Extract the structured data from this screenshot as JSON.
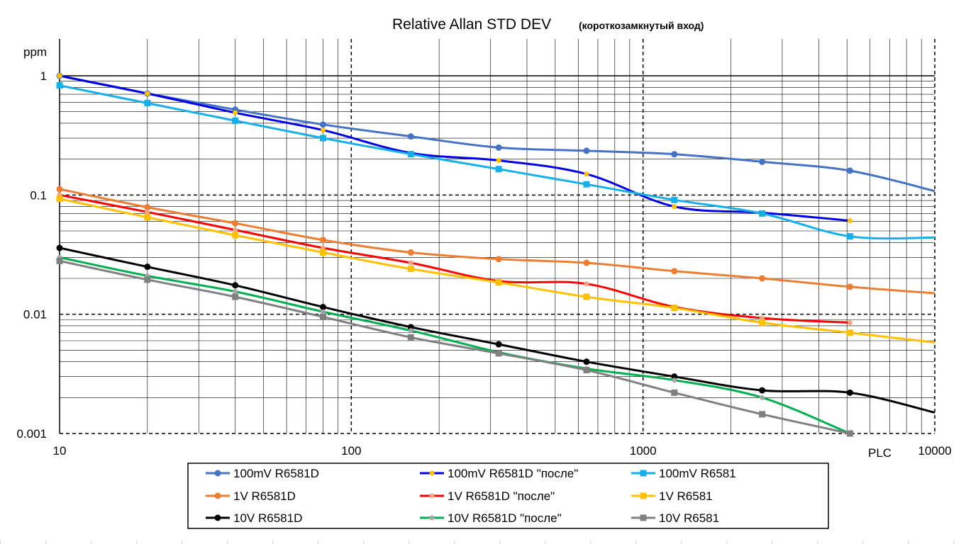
{
  "chart_data": {
    "type": "line",
    "title": "Relative Allan STD DEV",
    "subtitle": "(короткозамкнутый вход)",
    "xlabel": "PLC",
    "ylabel": "ppm",
    "xscale": "log",
    "yscale": "log",
    "xlim": [
      10,
      10000
    ],
    "ylim": [
      0.001,
      1
    ],
    "x_major_ticks": [
      {
        "value": 10,
        "label": "10"
      },
      {
        "value": 100,
        "label": "100"
      },
      {
        "value": 1000,
        "label": "1000"
      },
      {
        "value": 10000,
        "label": "10000"
      }
    ],
    "y_major_ticks": [
      {
        "value": 1,
        "label": "1"
      },
      {
        "value": 0.1,
        "label": "0.1"
      },
      {
        "value": 0.01,
        "label": "0.01"
      },
      {
        "value": 0.001,
        "label": "0.001"
      }
    ],
    "grid": true,
    "legend_position": "bottom",
    "x": [
      10,
      20,
      40,
      80,
      160,
      320,
      640,
      1280,
      2560,
      5120
    ],
    "series": [
      {
        "name": "100mV R6581D",
        "color": "#4472C4",
        "marker": "circle",
        "marker_color": "#4472C4",
        "values": [
          1.0,
          0.71,
          0.52,
          0.39,
          0.31,
          0.25,
          0.235,
          0.22,
          0.19,
          0.16
        ],
        "end": [
          10000,
          0.108
        ]
      },
      {
        "name": "100mV R6581D \"после\"",
        "color": "#0000E8",
        "marker": "circle-small",
        "marker_color": "#FFC000",
        "values": [
          1.0,
          0.71,
          0.49,
          0.35,
          0.225,
          0.195,
          0.15,
          0.08,
          0.071,
          0.061
        ],
        "end": null
      },
      {
        "name": "100mV R6581",
        "color": "#15B0EC",
        "marker": "square",
        "marker_color": "#15B0EC",
        "values": [
          0.83,
          0.59,
          0.42,
          0.3,
          0.22,
          0.165,
          0.123,
          0.091,
          0.07,
          0.045
        ],
        "end": [
          10000,
          0.044
        ]
      },
      {
        "name": "1V R6581D",
        "color": "#ED7D31",
        "marker": "circle",
        "marker_color": "#ED7D31",
        "values": [
          0.112,
          0.079,
          0.058,
          0.042,
          0.033,
          0.029,
          0.027,
          0.023,
          0.02,
          0.017
        ],
        "end": [
          10000,
          0.015
        ]
      },
      {
        "name": "1V R6581D \"после\"",
        "color": "#FF0000",
        "marker": "circle-small",
        "marker_color": "#F4A582",
        "values": [
          0.1,
          0.072,
          0.051,
          0.036,
          0.027,
          0.019,
          0.018,
          0.0115,
          0.0093,
          0.0085
        ],
        "end": null
      },
      {
        "name": "1V R6581",
        "color": "#FFC000",
        "marker": "square",
        "marker_color": "#FFC000",
        "values": [
          0.093,
          0.065,
          0.046,
          0.033,
          0.024,
          0.0185,
          0.014,
          0.0113,
          0.0085,
          0.007
        ],
        "end": [
          10000,
          0.0058
        ]
      },
      {
        "name": "10V R6581D",
        "color": "#000000",
        "marker": "circle",
        "marker_color": "#000000",
        "values": [
          0.036,
          0.025,
          0.0175,
          0.0115,
          0.0078,
          0.0056,
          0.004,
          0.003,
          0.0023,
          0.0022
        ],
        "end": [
          10000,
          0.0015
        ]
      },
      {
        "name": "10V R6581D \"после\"",
        "color": "#00B050",
        "marker": "circle-small",
        "marker_color": "#A5A5A5",
        "values": [
          0.03,
          0.021,
          0.0155,
          0.0105,
          0.0073,
          0.0048,
          0.0035,
          0.0028,
          0.002,
          0.001
        ],
        "end": null
      },
      {
        "name": "10V R6581",
        "color": "#808080",
        "marker": "square",
        "marker_color": "#808080",
        "values": [
          0.028,
          0.0195,
          0.014,
          0.0095,
          0.0064,
          0.0047,
          0.0034,
          0.0022,
          0.00145,
          0.001
        ],
        "end": null
      }
    ]
  }
}
